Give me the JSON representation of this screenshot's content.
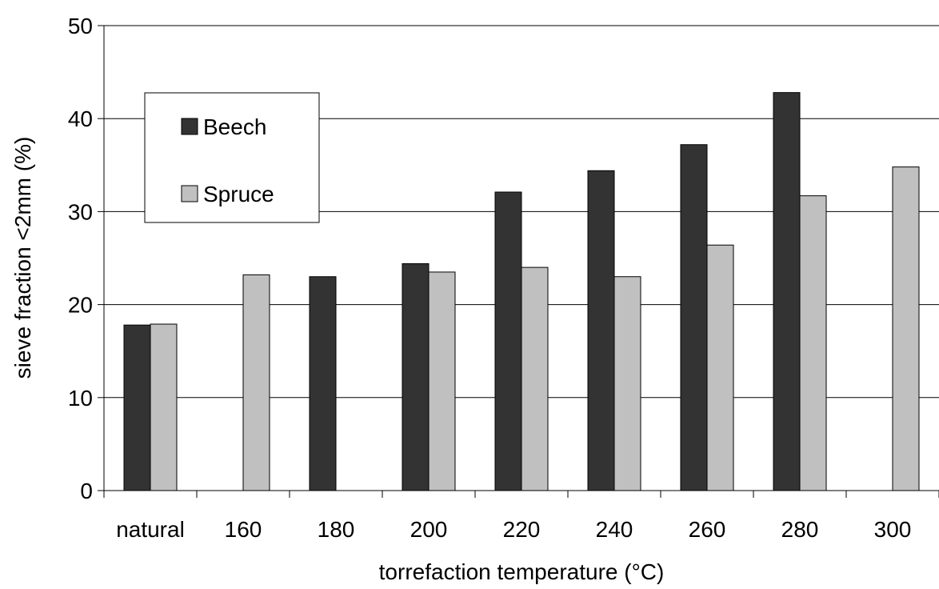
{
  "chart_data": {
    "type": "bar",
    "title": "",
    "xlabel": "torrefaction temperature (°C)",
    "ylabel": "sieve fraction <2mm (%)",
    "categories": [
      "natural",
      "160",
      "180",
      "200",
      "220",
      "240",
      "260",
      "280",
      "300"
    ],
    "ylim": [
      0,
      50
    ],
    "yticks": [
      0,
      10,
      20,
      30,
      40,
      50
    ],
    "grid": true,
    "legend_position": "top-left",
    "series": [
      {
        "name": "Beech",
        "color": "#333333",
        "values": [
          17.8,
          null,
          23.0,
          24.4,
          32.1,
          34.4,
          37.2,
          42.8,
          null
        ]
      },
      {
        "name": "Spruce",
        "color": "#c0c0c0",
        "values": [
          17.9,
          23.2,
          null,
          23.5,
          24.0,
          23.0,
          26.4,
          31.7,
          34.8
        ]
      }
    ]
  }
}
